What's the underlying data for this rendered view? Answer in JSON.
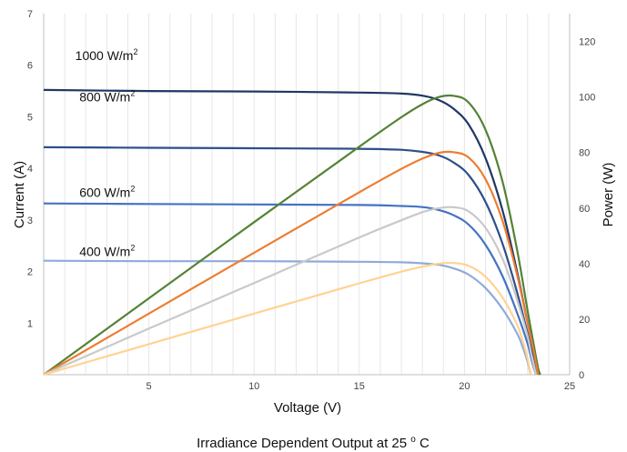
{
  "caption": {
    "text": "Irradiance Dependent Output at 25",
    "sup": "o",
    "tail": " C"
  },
  "chart_data": {
    "type": "line",
    "xlabel": "Voltage (V)",
    "ylabel": "Current (A)",
    "y2label": "Power (W)",
    "xlim": [
      0,
      25
    ],
    "ylim": [
      0,
      7
    ],
    "y2lim": [
      0,
      130
    ],
    "xticks": [
      5,
      10,
      15,
      20,
      25
    ],
    "yticks": [
      1,
      2,
      3,
      4,
      5,
      6,
      7
    ],
    "y2ticks": [
      0,
      20,
      40,
      60,
      80,
      100,
      120
    ],
    "grid": "vertical",
    "annotations": [
      {
        "text": "1000 W/m",
        "sup": "2",
        "x": 1.5,
        "y": 6.1
      },
      {
        "text": "800 W/m",
        "sup": "2",
        "x": 1.7,
        "y": 5.3
      },
      {
        "text": "600 W/m",
        "sup": "2",
        "x": 1.7,
        "y": 3.45
      },
      {
        "text": "400 W/m",
        "sup": "2",
        "x": 1.7,
        "y": 2.3
      }
    ],
    "series": [
      {
        "axis": "current",
        "color": "#1f3864",
        "x": [
          0,
          5,
          10,
          15,
          17,
          18,
          18.8,
          19.5,
          20.2,
          21,
          21.8,
          22.5,
          23,
          23.3,
          23.5,
          23.6
        ],
        "y": [
          5.52,
          5.5,
          5.49,
          5.47,
          5.45,
          5.41,
          5.32,
          5.15,
          4.85,
          4.2,
          3.2,
          2.0,
          1.0,
          0.45,
          0.1,
          0
        ]
      },
      {
        "axis": "current",
        "color": "#2e4f8a",
        "x": [
          0,
          5,
          10,
          15,
          17,
          18,
          18.8,
          19.5,
          20.2,
          21,
          21.8,
          22.5,
          23,
          23.3,
          23.45,
          23.5
        ],
        "y": [
          4.41,
          4.4,
          4.39,
          4.38,
          4.36,
          4.32,
          4.25,
          4.11,
          3.87,
          3.35,
          2.55,
          1.6,
          0.8,
          0.35,
          0.08,
          0
        ]
      },
      {
        "axis": "current",
        "color": "#4472c4",
        "x": [
          0,
          5,
          10,
          15,
          17,
          18,
          18.8,
          19.5,
          20.2,
          21,
          21.8,
          22.5,
          23,
          23.2,
          23.35,
          23.4
        ],
        "y": [
          3.32,
          3.31,
          3.3,
          3.29,
          3.27,
          3.25,
          3.19,
          3.09,
          2.91,
          2.52,
          1.92,
          1.2,
          0.6,
          0.27,
          0.06,
          0
        ]
      },
      {
        "axis": "current",
        "color": "#8faadc",
        "x": [
          0,
          5,
          10,
          15,
          17,
          18,
          18.8,
          19.5,
          20.2,
          21,
          21.8,
          22.5,
          22.8,
          23.0,
          23.1,
          23.15
        ],
        "y": [
          2.21,
          2.2,
          2.2,
          2.19,
          2.18,
          2.16,
          2.13,
          2.06,
          1.94,
          1.68,
          1.28,
          0.8,
          0.5,
          0.25,
          0.08,
          0
        ]
      },
      {
        "axis": "power",
        "color": "#548235",
        "x": [
          0,
          5,
          10,
          15,
          17,
          18,
          18.8,
          19.5,
          20.2,
          21,
          21.8,
          22.5,
          23,
          23.3,
          23.5,
          23.6
        ],
        "y": [
          0,
          27.5,
          54.9,
          82.1,
          92.7,
          97.4,
          100.0,
          100.4,
          98.0,
          88.2,
          69.8,
          45.0,
          23.0,
          10.5,
          2.4,
          0
        ]
      },
      {
        "axis": "power",
        "color": "#ed7d31",
        "x": [
          0,
          5,
          10,
          15,
          17,
          18,
          18.8,
          19.5,
          20.2,
          21,
          21.8,
          22.5,
          23,
          23.3,
          23.45,
          23.5
        ],
        "y": [
          0,
          22.0,
          43.9,
          65.7,
          74.1,
          77.8,
          79.9,
          80.1,
          78.2,
          70.4,
          55.6,
          36.0,
          18.4,
          8.2,
          1.9,
          0
        ]
      },
      {
        "axis": "power",
        "color": "#c9c9c9",
        "x": [
          0,
          5,
          10,
          15,
          17,
          18,
          18.8,
          19.5,
          20.2,
          21,
          21.8,
          22.5,
          23,
          23.2,
          23.35,
          23.4
        ],
        "y": [
          0,
          16.6,
          33.0,
          49.4,
          55.6,
          58.5,
          60.0,
          60.3,
          58.8,
          52.9,
          41.9,
          27.0,
          13.8,
          6.3,
          1.4,
          0
        ]
      },
      {
        "axis": "power",
        "color": "#ffd391",
        "x": [
          0,
          5,
          10,
          15,
          17,
          18,
          18.8,
          19.5,
          20.2,
          21,
          21.8,
          22.5,
          22.8,
          23.0,
          23.1,
          23.15
        ],
        "y": [
          0,
          11.0,
          22.0,
          32.9,
          37.1,
          38.9,
          40.0,
          40.2,
          39.2,
          35.3,
          27.9,
          18.0,
          11.4,
          5.8,
          1.8,
          0
        ]
      }
    ]
  }
}
